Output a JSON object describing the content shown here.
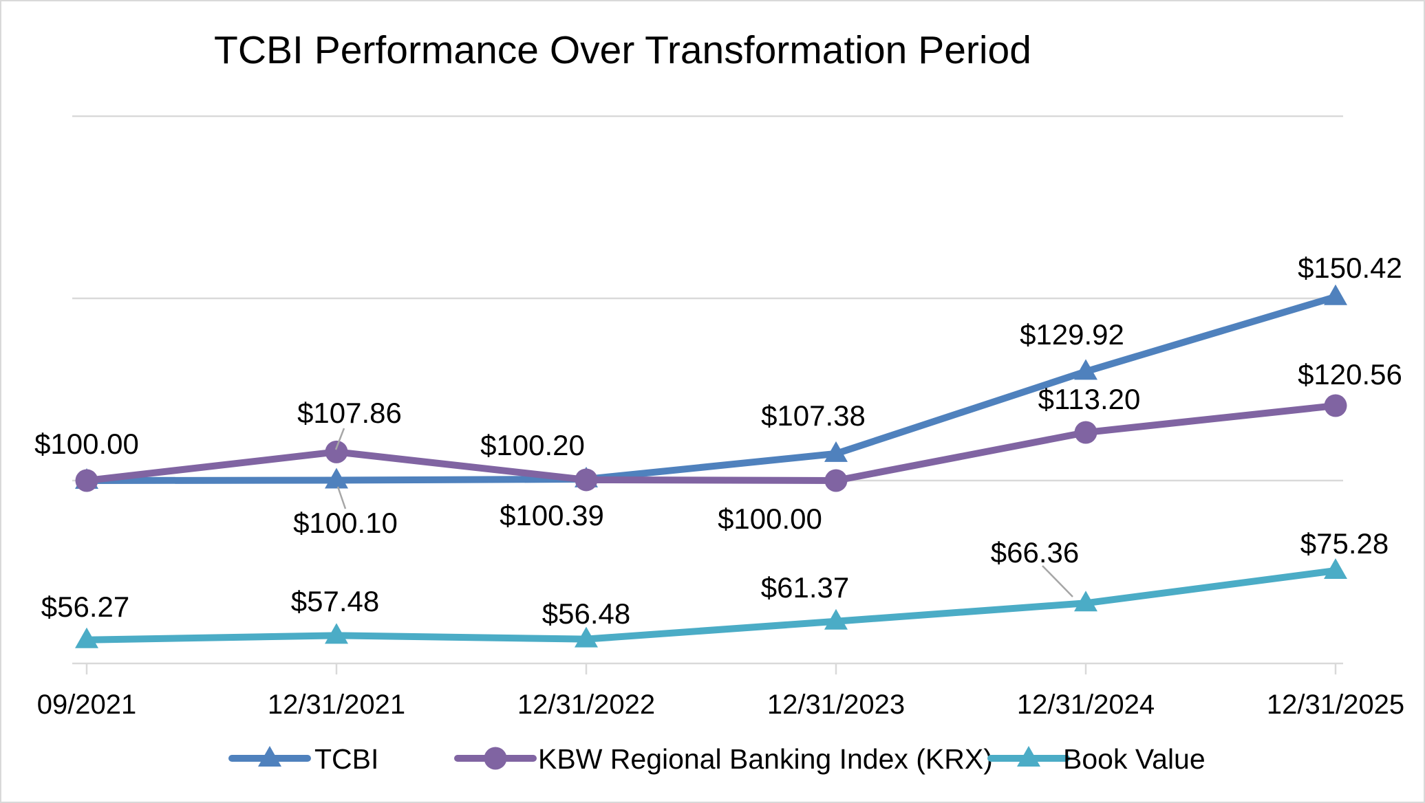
{
  "window": {
    "background": "#FFFFFF",
    "border_color": "#D9D9D9"
  },
  "chart_data": {
    "type": "line",
    "title": "TCBI Performance Over Transformation Period",
    "categories": [
      "09/2021",
      "12/31/2021",
      "12/31/2022",
      "12/31/2023",
      "12/31/2024",
      "12/31/2025"
    ],
    "series": [
      {
        "name": "TCBI",
        "color": "#4F81BD",
        "marker": "triangle",
        "values": [
          100.0,
          100.1,
          100.39,
          107.38,
          129.92,
          150.42
        ],
        "labels": [
          "$100.00",
          "$100.10",
          "$100.39",
          "$107.38",
          "$129.92",
          "$150.42"
        ]
      },
      {
        "name": "KBW Regional Banking Index (KRX)",
        "color": "#8064A2",
        "marker": "circle",
        "values": [
          100.0,
          107.86,
          100.2,
          100.0,
          113.2,
          120.56
        ],
        "labels": [
          null,
          "$107.86",
          "$100.20",
          "$100.00",
          "$113.20",
          "$120.56"
        ]
      },
      {
        "name": "Book Value",
        "color": "#4BACC6",
        "marker": "triangle",
        "values": [
          56.27,
          57.48,
          56.48,
          61.37,
          66.36,
          75.28
        ],
        "labels": [
          "$56.27",
          "$57.48",
          "$56.48",
          "$61.37",
          "$66.36",
          "$75.28"
        ]
      }
    ],
    "xlabel": "",
    "ylabel": "",
    "axis": {
      "y_min": 50,
      "y_max": 208,
      "gridline_values": [
        200,
        150,
        100
      ],
      "y_axis_labels_visible": false,
      "grid_on": true
    },
    "gridline_color": "#D9D9D9",
    "axis_line_color": "#D9D9D9",
    "leader_line_color": "#A6A6A6",
    "text_color": "#000000",
    "legend_position": "bottom"
  },
  "legend": {
    "items": [
      "TCBI",
      "KBW Regional Banking Index (KRX)",
      "Book Value"
    ]
  }
}
